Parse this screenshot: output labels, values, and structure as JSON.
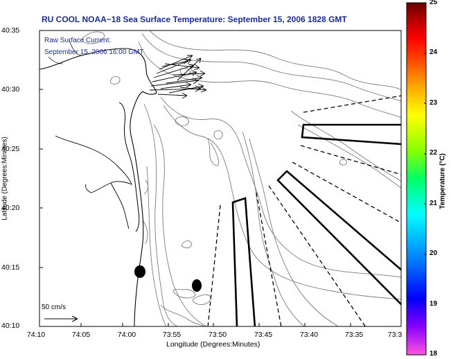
{
  "map": {
    "title": "RU COOL  NOAA−18  Sea Surface Temperature:  September 15, 2006 1828 GMT",
    "overlay_title": "Raw Surface Current:",
    "overlay_date": "September 15, 2006 16:00 GMT",
    "xlabel": "Longitude (Degrees:Minutes)",
    "ylabel": "Latitude (Degrees:Minutes)",
    "x_ticks": [
      "74:10",
      "74:05",
      "74:00",
      "73:55",
      "73:50",
      "73:45",
      "73:40",
      "73:35",
      "73:3"
    ],
    "y_ticks": [
      "40:35",
      "40:30",
      "40:25",
      "40:20",
      "40:15",
      "40:10"
    ],
    "scale_label": "50 cm/s",
    "land_color": "#ffffff",
    "contour_color": "#777777",
    "text_color": "#1a2a9a"
  },
  "colorbar": {
    "label": "Temperature (°C)",
    "ticks": [
      "25",
      "24",
      "23",
      "22",
      "21",
      "20",
      "19",
      "18"
    ],
    "range": [
      18,
      25
    ],
    "colormap": [
      "#ff55dd",
      "#8800ff",
      "#0000ff",
      "#0088ff",
      "#00ffff",
      "#00ff66",
      "#88ff00",
      "#ffff00",
      "#ffaa00",
      "#ff4400",
      "#ff0000",
      "#aa0000",
      "#660000"
    ]
  }
}
